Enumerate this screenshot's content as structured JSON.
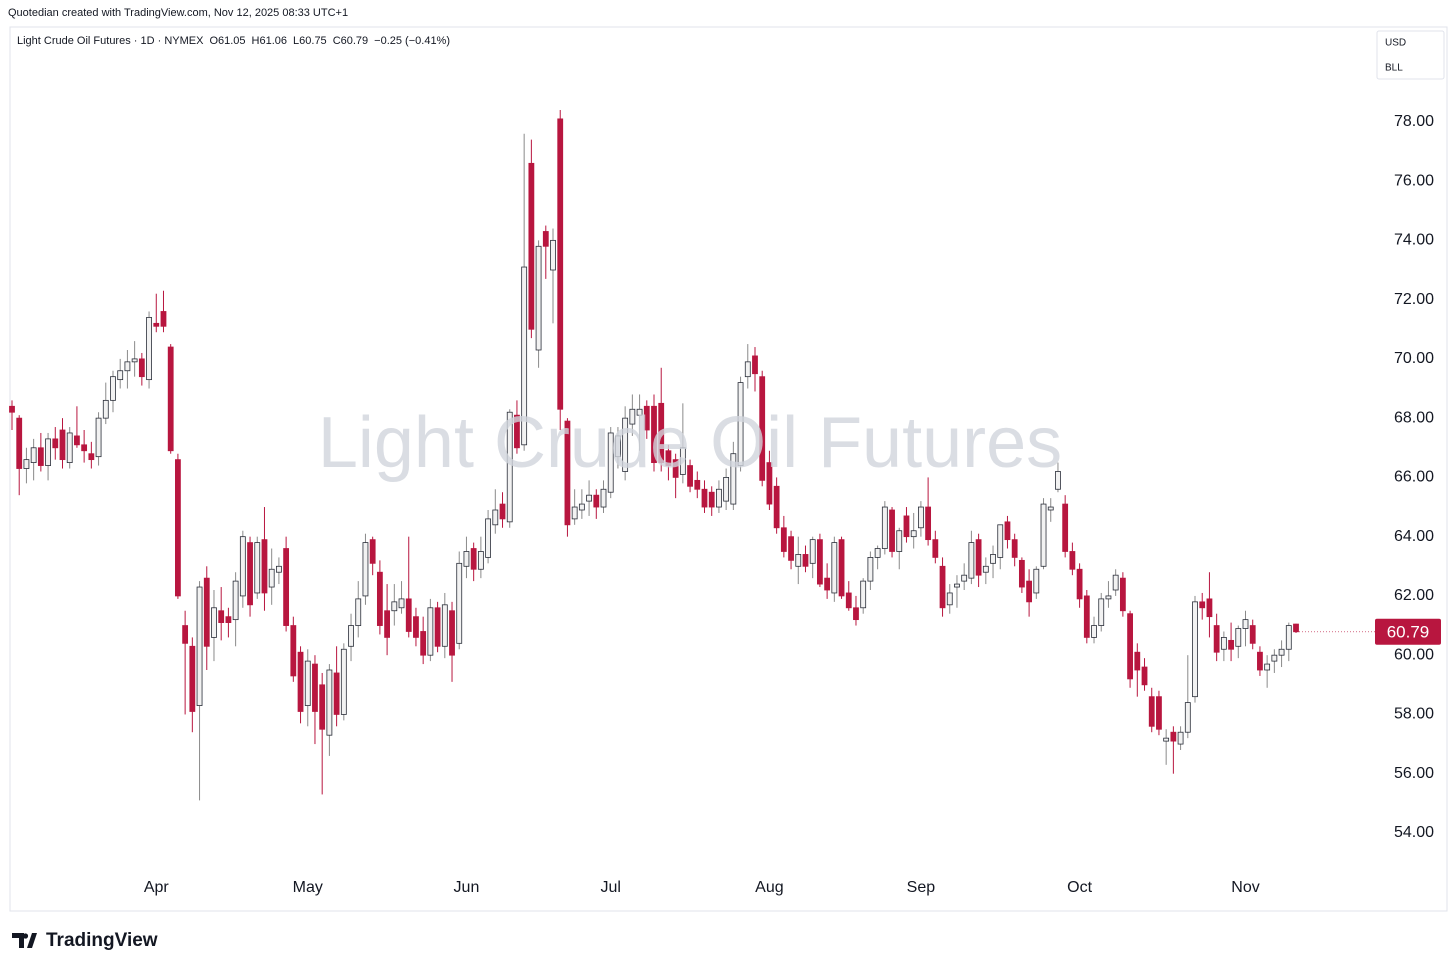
{
  "header": "Quotedian created with TradingView.com, Nov 12, 2025 08:33 UTC+1",
  "footer": "TradingView",
  "chart_data": {
    "type": "candlestick",
    "title": "Light Crude Oil Futures · 1D · NYMEX",
    "legend_values": [
      "O61.05",
      "H61.06",
      "L60.75",
      "C60.79",
      "−0.25 (−0.41%)"
    ],
    "watermark": "Light Crude Oil Futures",
    "currency": "USD",
    "unit": "BLL",
    "last_price": 60.79,
    "up_color": "#f2f2f2",
    "down_color": "#b8163f",
    "ylim": [
      51.4,
      81.1
    ],
    "yticks": [
      {
        "value": 54,
        "label": "54.00"
      },
      {
        "value": 56,
        "label": "56.00"
      },
      {
        "value": 58,
        "label": "58.00"
      },
      {
        "value": 60,
        "label": "60.00"
      },
      {
        "value": 62,
        "label": "62.00"
      },
      {
        "value": 64,
        "label": "64.00"
      },
      {
        "value": 66,
        "label": "66.00"
      },
      {
        "value": 68,
        "label": "68.00"
      },
      {
        "value": 70,
        "label": "70.00"
      },
      {
        "value": 72,
        "label": "72.00"
      },
      {
        "value": 74,
        "label": "74.00"
      },
      {
        "value": 76,
        "label": "76.00"
      },
      {
        "value": 78,
        "label": "78.00"
      }
    ],
    "categories": [
      null,
      null,
      null,
      null,
      null,
      null,
      null,
      null,
      null,
      null,
      null,
      null,
      null,
      null,
      null,
      null,
      null,
      null,
      null,
      null,
      "Apr",
      null,
      null,
      null,
      null,
      null,
      null,
      null,
      null,
      null,
      null,
      null,
      null,
      null,
      null,
      null,
      null,
      null,
      null,
      null,
      null,
      "May",
      null,
      null,
      null,
      null,
      null,
      null,
      null,
      null,
      null,
      null,
      null,
      null,
      null,
      null,
      null,
      null,
      null,
      null,
      null,
      null,
      null,
      "Jun",
      null,
      null,
      null,
      null,
      null,
      null,
      null,
      null,
      null,
      null,
      null,
      null,
      null,
      null,
      null,
      null,
      null,
      null,
      null,
      "Jul",
      null,
      null,
      null,
      null,
      null,
      null,
      null,
      null,
      null,
      null,
      null,
      null,
      null,
      null,
      null,
      null,
      null,
      null,
      null,
      null,
      null,
      "Aug",
      null,
      null,
      null,
      null,
      null,
      null,
      null,
      null,
      null,
      null,
      null,
      null,
      null,
      null,
      null,
      null,
      null,
      null,
      null,
      null,
      "Sep",
      null,
      null,
      null,
      null,
      null,
      null,
      null,
      null,
      null,
      null,
      null,
      null,
      null,
      null,
      null,
      null,
      null,
      null,
      null,
      null,
      null,
      "Oct",
      null,
      null,
      null,
      null,
      null,
      null,
      null,
      null,
      null,
      null,
      null,
      null,
      null,
      null,
      null,
      null,
      null,
      null,
      null,
      null,
      null,
      null,
      "Nov",
      null,
      null,
      null,
      null,
      null,
      null,
      null
    ],
    "ohlc": [
      [
        68.4,
        68.6,
        67.6,
        68.2
      ],
      [
        68.0,
        68.1,
        65.4,
        66.3
      ],
      [
        66.3,
        67.0,
        65.8,
        66.6
      ],
      [
        66.5,
        67.3,
        65.9,
        67.0
      ],
      [
        67.0,
        67.5,
        66.2,
        66.4
      ],
      [
        66.4,
        67.5,
        65.9,
        67.3
      ],
      [
        67.3,
        67.7,
        66.6,
        67.0
      ],
      [
        67.6,
        68.0,
        66.3,
        66.6
      ],
      [
        66.5,
        67.7,
        66.3,
        67.5
      ],
      [
        67.4,
        68.4,
        67.0,
        67.1
      ],
      [
        67.1,
        67.6,
        66.5,
        66.9
      ],
      [
        66.8,
        67.2,
        66.3,
        66.6
      ],
      [
        66.7,
        68.2,
        66.4,
        68.0
      ],
      [
        68.0,
        69.2,
        67.8,
        68.6
      ],
      [
        68.6,
        69.6,
        68.2,
        69.4
      ],
      [
        69.3,
        70.0,
        69.0,
        69.6
      ],
      [
        69.6,
        70.3,
        69.0,
        69.9
      ],
      [
        69.9,
        70.6,
        69.4,
        70.0
      ],
      [
        70.0,
        70.2,
        69.1,
        69.4
      ],
      [
        69.3,
        71.6,
        69.0,
        71.4
      ],
      [
        71.2,
        72.2,
        70.9,
        71.1
      ],
      [
        71.6,
        72.3,
        70.9,
        71.1
      ],
      [
        70.4,
        70.5,
        66.8,
        66.9
      ],
      [
        66.6,
        66.8,
        61.9,
        62.0
      ],
      [
        61.0,
        61.5,
        58.0,
        60.4
      ],
      [
        60.3,
        60.6,
        57.4,
        58.1
      ],
      [
        58.3,
        62.5,
        55.1,
        62.3
      ],
      [
        62.6,
        63.0,
        59.5,
        60.3
      ],
      [
        60.6,
        62.2,
        59.8,
        61.6
      ],
      [
        61.5,
        62.3,
        60.5,
        61.1
      ],
      [
        61.3,
        61.6,
        60.6,
        61.1
      ],
      [
        61.2,
        62.8,
        60.3,
        62.5
      ],
      [
        62.0,
        64.2,
        61.6,
        64.0
      ],
      [
        63.8,
        64.0,
        61.3,
        61.7
      ],
      [
        62.1,
        64.0,
        61.9,
        63.8
      ],
      [
        63.9,
        65.0,
        61.5,
        62.1
      ],
      [
        62.3,
        63.6,
        61.7,
        62.9
      ],
      [
        62.8,
        63.3,
        62.4,
        63.0
      ],
      [
        63.6,
        64.0,
        60.8,
        61.0
      ],
      [
        61.0,
        61.3,
        59.1,
        59.3
      ],
      [
        60.1,
        60.3,
        57.7,
        58.1
      ],
      [
        58.3,
        60.2,
        57.6,
        59.8
      ],
      [
        59.7,
        60.0,
        57.0,
        58.1
      ],
      [
        59.0,
        59.4,
        55.3,
        57.5
      ],
      [
        57.3,
        59.7,
        56.6,
        59.5
      ],
      [
        59.4,
        60.3,
        57.6,
        58.0
      ],
      [
        58.0,
        60.4,
        57.8,
        60.2
      ],
      [
        60.3,
        61.4,
        59.8,
        61.0
      ],
      [
        61.0,
        62.5,
        60.6,
        61.9
      ],
      [
        62.0,
        64.1,
        61.7,
        63.8
      ],
      [
        63.9,
        64.0,
        62.7,
        63.1
      ],
      [
        62.8,
        63.2,
        60.7,
        61.0
      ],
      [
        61.5,
        62.4,
        60.0,
        60.6
      ],
      [
        61.5,
        62.4,
        61.0,
        61.8
      ],
      [
        61.6,
        62.5,
        61.4,
        61.9
      ],
      [
        61.9,
        64.0,
        60.6,
        60.8
      ],
      [
        61.3,
        61.6,
        60.3,
        60.6
      ],
      [
        60.8,
        61.3,
        59.7,
        60.0
      ],
      [
        60.0,
        61.9,
        59.8,
        61.6
      ],
      [
        61.6,
        61.8,
        60.1,
        60.3
      ],
      [
        60.3,
        62.1,
        59.9,
        61.7
      ],
      [
        61.5,
        61.8,
        59.1,
        60.0
      ],
      [
        60.4,
        63.5,
        60.2,
        63.1
      ],
      [
        63.0,
        64.0,
        62.6,
        63.5
      ],
      [
        63.6,
        63.8,
        62.5,
        62.9
      ],
      [
        62.9,
        64.0,
        62.6,
        63.5
      ],
      [
        63.3,
        64.9,
        63.1,
        64.6
      ],
      [
        64.4,
        65.6,
        64.1,
        64.9
      ],
      [
        65.1,
        65.5,
        64.3,
        64.6
      ],
      [
        64.5,
        68.3,
        64.3,
        68.2
      ],
      [
        68.1,
        68.6,
        66.8,
        67.0
      ],
      [
        67.1,
        77.6,
        66.9,
        73.1
      ],
      [
        76.6,
        77.4,
        70.7,
        71.0
      ],
      [
        70.3,
        74.0,
        69.7,
        73.8
      ],
      [
        74.3,
        74.5,
        72.7,
        73.8
      ],
      [
        73.0,
        74.4,
        71.2,
        74.0
      ],
      [
        78.1,
        78.4,
        67.6,
        68.3
      ],
      [
        67.9,
        68.0,
        64.0,
        64.4
      ],
      [
        64.6,
        65.6,
        64.4,
        65.0
      ],
      [
        64.9,
        65.6,
        64.6,
        65.1
      ],
      [
        65.2,
        65.9,
        64.7,
        65.4
      ],
      [
        65.4,
        65.6,
        64.6,
        65.0
      ],
      [
        65.0,
        65.9,
        64.8,
        65.6
      ],
      [
        65.5,
        67.7,
        65.3,
        67.5
      ],
      [
        66.7,
        67.7,
        66.3,
        67.4
      ],
      [
        66.2,
        68.4,
        65.9,
        68.0
      ],
      [
        67.8,
        68.8,
        67.4,
        68.3
      ],
      [
        68.1,
        68.8,
        66.9,
        68.3
      ],
      [
        68.4,
        68.6,
        67.3,
        67.6
      ],
      [
        68.4,
        68.8,
        66.2,
        66.5
      ],
      [
        68.5,
        69.7,
        66.2,
        66.5
      ],
      [
        66.9,
        67.1,
        65.9,
        66.4
      ],
      [
        66.6,
        66.8,
        65.3,
        66.0
      ],
      [
        66.1,
        68.5,
        65.8,
        67.0
      ],
      [
        66.4,
        66.6,
        65.5,
        65.7
      ],
      [
        65.9,
        66.2,
        65.3,
        65.6
      ],
      [
        65.6,
        65.9,
        64.8,
        65.0
      ],
      [
        65.5,
        65.7,
        64.7,
        65.0
      ],
      [
        65.0,
        65.9,
        64.8,
        65.6
      ],
      [
        65.2,
        66.3,
        64.9,
        66.0
      ],
      [
        65.1,
        67.2,
        64.9,
        66.8
      ],
      [
        66.4,
        69.4,
        66.2,
        69.2
      ],
      [
        69.4,
        70.5,
        69.0,
        69.9
      ],
      [
        70.1,
        70.4,
        68.9,
        69.5
      ],
      [
        69.4,
        69.6,
        65.7,
        65.9
      ],
      [
        66.5,
        66.9,
        64.9,
        65.1
      ],
      [
        65.7,
        66.0,
        64.1,
        64.3
      ],
      [
        64.3,
        64.7,
        63.3,
        63.5
      ],
      [
        64.0,
        64.2,
        62.9,
        63.2
      ],
      [
        63.0,
        64.0,
        62.4,
        63.4
      ],
      [
        63.4,
        63.7,
        62.8,
        63.0
      ],
      [
        63.1,
        64.0,
        62.6,
        63.9
      ],
      [
        63.9,
        64.1,
        62.3,
        62.4
      ],
      [
        62.6,
        63.1,
        61.9,
        62.2
      ],
      [
        62.1,
        64.0,
        61.8,
        63.8
      ],
      [
        63.9,
        64.0,
        61.9,
        62.0
      ],
      [
        62.1,
        62.5,
        61.5,
        61.6
      ],
      [
        61.6,
        62.0,
        61.0,
        61.2
      ],
      [
        61.6,
        62.6,
        61.4,
        62.5
      ],
      [
        62.5,
        63.5,
        62.2,
        63.3
      ],
      [
        63.3,
        63.7,
        62.9,
        63.6
      ],
      [
        63.6,
        65.2,
        63.4,
        65.0
      ],
      [
        64.9,
        65.0,
        63.3,
        63.5
      ],
      [
        63.5,
        64.3,
        62.9,
        64.2
      ],
      [
        64.7,
        65.0,
        63.8,
        64.0
      ],
      [
        64.0,
        64.8,
        63.6,
        64.2
      ],
      [
        64.3,
        65.2,
        64.0,
        65.0
      ],
      [
        65.0,
        66.0,
        63.7,
        63.9
      ],
      [
        63.9,
        64.2,
        63.1,
        63.3
      ],
      [
        63.0,
        63.3,
        61.3,
        61.6
      ],
      [
        61.7,
        62.4,
        61.4,
        62.1
      ],
      [
        62.3,
        62.7,
        61.6,
        62.4
      ],
      [
        62.5,
        63.1,
        62.2,
        62.7
      ],
      [
        62.6,
        64.2,
        62.4,
        63.8
      ],
      [
        63.9,
        64.1,
        62.3,
        62.7
      ],
      [
        62.8,
        63.3,
        62.4,
        63.0
      ],
      [
        63.1,
        63.7,
        62.6,
        63.4
      ],
      [
        63.3,
        64.4,
        62.9,
        64.4
      ],
      [
        64.5,
        64.7,
        63.6,
        63.9
      ],
      [
        63.9,
        64.1,
        63.0,
        63.3
      ],
      [
        63.2,
        63.3,
        62.1,
        62.3
      ],
      [
        62.5,
        62.9,
        61.3,
        61.8
      ],
      [
        62.1,
        63.0,
        61.9,
        62.9
      ],
      [
        63.0,
        65.3,
        62.9,
        65.1
      ],
      [
        64.9,
        65.3,
        64.5,
        65.0
      ],
      [
        65.6,
        66.5,
        65.5,
        66.2
      ],
      [
        65.1,
        65.4,
        63.3,
        63.5
      ],
      [
        63.5,
        63.8,
        62.7,
        62.9
      ],
      [
        62.9,
        63.1,
        61.6,
        61.9
      ],
      [
        62.0,
        62.2,
        60.4,
        60.6
      ],
      [
        60.6,
        61.3,
        60.4,
        61.0
      ],
      [
        61.0,
        62.1,
        60.8,
        61.9
      ],
      [
        61.9,
        62.5,
        61.6,
        62.0
      ],
      [
        62.2,
        62.9,
        62.0,
        62.7
      ],
      [
        62.6,
        62.8,
        61.3,
        61.5
      ],
      [
        61.4,
        61.5,
        58.9,
        59.2
      ],
      [
        60.1,
        60.4,
        58.6,
        59.5
      ],
      [
        59.6,
        59.9,
        58.8,
        59.0
      ],
      [
        58.6,
        58.9,
        57.4,
        57.6
      ],
      [
        58.6,
        58.8,
        57.3,
        57.5
      ],
      [
        57.1,
        57.5,
        56.3,
        57.2
      ],
      [
        57.4,
        57.6,
        56.0,
        57.1
      ],
      [
        57.0,
        57.6,
        56.8,
        57.4
      ],
      [
        57.4,
        60.0,
        57.2,
        58.4
      ],
      [
        58.6,
        62.0,
        58.4,
        61.8
      ],
      [
        61.8,
        62.1,
        61.2,
        61.6
      ],
      [
        61.9,
        62.8,
        60.6,
        61.3
      ],
      [
        61.0,
        61.4,
        59.8,
        60.1
      ],
      [
        60.2,
        60.8,
        59.8,
        60.6
      ],
      [
        60.5,
        61.1,
        59.8,
        60.2
      ],
      [
        60.3,
        61.0,
        59.9,
        60.9
      ],
      [
        60.9,
        61.5,
        60.3,
        61.2
      ],
      [
        61.0,
        61.2,
        60.2,
        60.4
      ],
      [
        60.1,
        60.3,
        59.3,
        59.5
      ],
      [
        59.5,
        60.0,
        58.9,
        59.7
      ],
      [
        59.8,
        60.2,
        59.4,
        60.0
      ],
      [
        60.0,
        60.5,
        59.6,
        60.2
      ],
      [
        60.2,
        61.1,
        59.8,
        61.0
      ],
      [
        61.05,
        61.06,
        60.75,
        60.79
      ]
    ]
  }
}
